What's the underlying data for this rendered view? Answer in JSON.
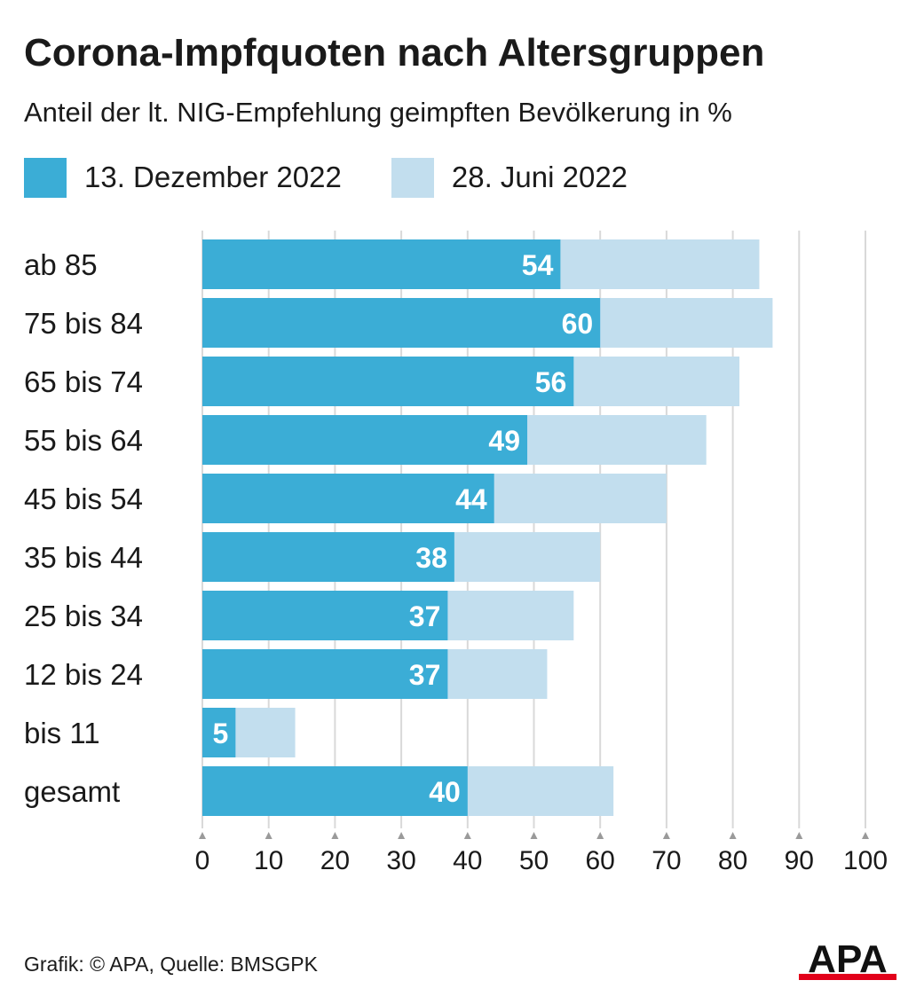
{
  "title": "Corona-Impfquoten nach Altersgruppen",
  "subtitle": "Anteil der lt. NIG-Empfehlung geimpften Bevölkerung in %",
  "footer": "Grafik: © APA, Quelle: BMSGPK",
  "logo_text": "APA",
  "colors": {
    "dec": "#3badd6",
    "jun": "#c2deee",
    "grid": "#d9d9d9",
    "axis_marker": "#9a9a9a",
    "logo_bar": "#e2001a",
    "text": "#1a1a1a"
  },
  "chart_data": {
    "type": "bar",
    "orientation": "horizontal",
    "categories": [
      "ab 85",
      "75 bis 84",
      "65 bis 74",
      "55 bis 64",
      "45 bis 54",
      "35 bis 44",
      "25 bis 34",
      "12 bis 24",
      "bis 11",
      "gesamt"
    ],
    "series": [
      {
        "name": "13. Dezember 2022",
        "values": [
          54,
          60,
          56,
          49,
          44,
          38,
          37,
          37,
          5,
          40
        ],
        "color": "#3badd6",
        "labeled": true
      },
      {
        "name": "28. Juni 2022",
        "values": [
          84,
          86,
          81,
          76,
          70,
          60,
          56,
          52,
          14,
          62
        ],
        "color": "#c2deee",
        "labeled": false
      }
    ],
    "xlim": [
      0,
      100
    ],
    "xticks": [
      0,
      10,
      20,
      30,
      40,
      50,
      60,
      70,
      80,
      90,
      100
    ],
    "grid": true,
    "legend_position": "top-left",
    "overlay": true
  }
}
